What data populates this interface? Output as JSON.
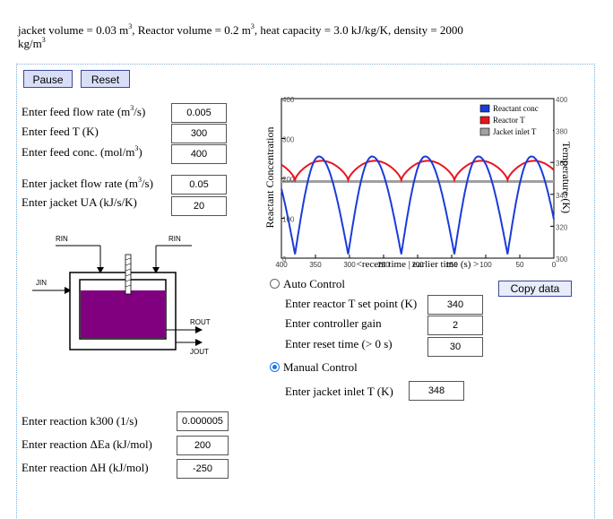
{
  "header": {
    "line1_a": "jacket volume = 0.03 m",
    "line1_b": ", Reactor volume = 0.2 m",
    "line1_c": ", heat capacity = 3.0 kJ/kg/K, density = 2000",
    "line2": "kg/m",
    "sup": "3"
  },
  "buttons": {
    "pause": "Pause",
    "reset": "Reset",
    "copy": "Copy data"
  },
  "inputs_left": [
    {
      "label_a": "Enter feed flow rate (m",
      "label_b": "/s)",
      "value": "0.005"
    },
    {
      "label_a": "Enter feed T (K)",
      "label_b": "",
      "value": "300"
    },
    {
      "label_a": "Enter feed conc. (mol/m",
      "label_b": ")",
      "value": "400"
    },
    {
      "label_a": "Enter jacket flow rate (m",
      "label_b": "/s)",
      "value": "0.05"
    },
    {
      "label_a": "Enter jacket UA (kJ/s/K)",
      "label_b": "",
      "value": "20"
    }
  ],
  "inputs_bottom": [
    {
      "label": "Enter reaction k300 (1/s)",
      "value": "0.000005"
    },
    {
      "label": "Enter reaction ΔEa (kJ/mol)",
      "value": "200"
    },
    {
      "label": "Enter reaction ΔH (kJ/mol)",
      "value": "-250"
    }
  ],
  "diagram": {
    "rin_left": "RIN",
    "rin_right": "RIN",
    "jin": "JIN",
    "rout": "ROUT",
    "jout": "JOUT",
    "reactor_color": "#800080"
  },
  "control": {
    "auto_label": "Auto Control",
    "manual_label": "Manual Control",
    "setpoint_label": "Enter reactor T set point (K)",
    "setpoint_value": "340",
    "gain_label": "Enter controller gain",
    "gain_value": "2",
    "reset_label": "Enter reset time (> 0 s)",
    "reset_value": "30",
    "jacket_label": "Enter jacket inlet T (K)",
    "jacket_value": "348",
    "selected": "manual"
  },
  "chart_data": {
    "type": "line",
    "ylabel_left": "Reactant Concentration",
    "ylabel_right": "Temperature (K)",
    "xlabel": "<recent time | earlier time (s) >",
    "x_ticks": [
      "400",
      "350",
      "300",
      "250",
      "200",
      "150",
      "100",
      "50",
      "0"
    ],
    "xlim": [
      400,
      0
    ],
    "y_left_ticks": [
      "400",
      "300",
      "200",
      "100",
      "0"
    ],
    "y_left_lim": [
      0,
      400
    ],
    "y_right_ticks": [
      "400",
      "380",
      "360",
      "340",
      "320",
      "300"
    ],
    "y_right_lim": [
      300,
      400
    ],
    "legend": [
      "Reactant conc",
      "Reactor T",
      "Jacket inlet T"
    ],
    "colors": {
      "conc": "#1a3cd8",
      "temp": "#e8141e",
      "jacket": "#a0a0a0"
    },
    "series": [
      {
        "name": "Reactant conc",
        "peaks_y": 255,
        "troughs_y": 10,
        "period_s": 78
      },
      {
        "name": "Reactor T",
        "range_K": [
          349,
          361
        ],
        "period_s": 78
      },
      {
        "name": "Jacket inlet T",
        "value_K": 348
      }
    ]
  }
}
